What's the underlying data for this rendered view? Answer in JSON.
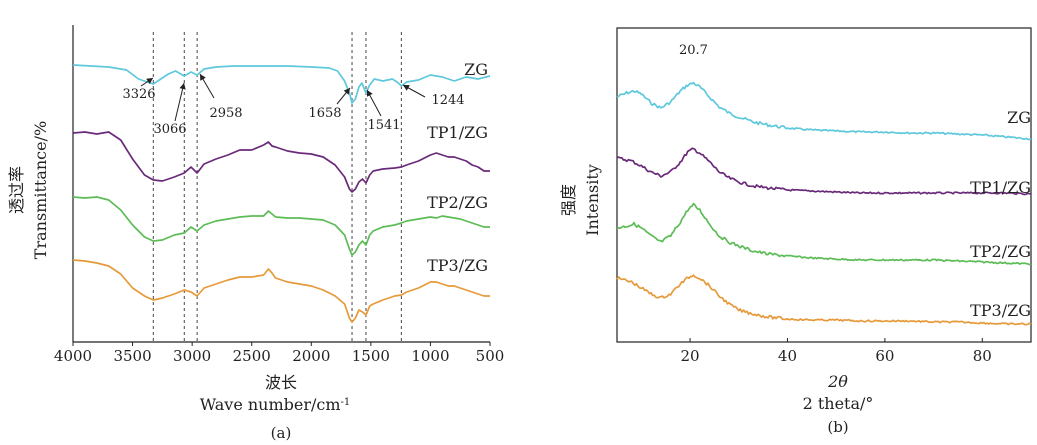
{
  "chart_data": [
    {
      "type": "line",
      "panel_label": "(a)",
      "xlabel_cn": "波长",
      "xlabel": "Wave number/cm",
      "xlabel_sup": "-1",
      "ylabel_cn": "透过率",
      "ylabel": "Transmittance/%",
      "xlim": [
        4000,
        500
      ],
      "x_ticks": [
        4000,
        3500,
        3000,
        2500,
        2000,
        1500,
        1000,
        500
      ],
      "dashed_lines_x": [
        3326,
        3066,
        2958,
        1658,
        1541,
        1244
      ],
      "annotations": [
        {
          "text": "3326",
          "x": 3326
        },
        {
          "text": "3066",
          "x": 3066
        },
        {
          "text": "2958",
          "x": 2958
        },
        {
          "text": "1658",
          "x": 1658
        },
        {
          "text": "1541",
          "x": 1541
        },
        {
          "text": "1244",
          "x": 1244
        }
      ],
      "series": [
        {
          "name": "ZG",
          "color": "#5ec8dc",
          "offset": 0,
          "x": [
            4000,
            3850,
            3700,
            3550,
            3450,
            3326,
            3200,
            3140,
            3066,
            3010,
            2958,
            2900,
            2800,
            2650,
            2500,
            2360,
            2300,
            2200,
            2000,
            1850,
            1780,
            1720,
            1680,
            1658,
            1630,
            1600,
            1575,
            1541,
            1510,
            1470,
            1400,
            1320,
            1280,
            1244,
            1200,
            1100,
            1000,
            900,
            800,
            700,
            600,
            500
          ],
          "y": [
            0,
            1,
            2,
            5,
            14,
            19,
            9,
            6,
            11,
            7,
            10,
            4,
            2,
            1,
            1,
            1,
            1,
            1,
            2,
            3,
            6,
            16,
            28,
            38,
            34,
            22,
            18,
            28,
            20,
            14,
            16,
            14,
            17,
            21,
            17,
            15,
            10,
            12,
            16,
            12,
            14,
            11
          ]
        },
        {
          "name": "TP1/ZG",
          "color": "#6a2a7a",
          "offset": 72,
          "x": [
            4000,
            3900,
            3800,
            3700,
            3600,
            3500,
            3400,
            3326,
            3250,
            3150,
            3066,
            3010,
            2958,
            2900,
            2800,
            2700,
            2600,
            2500,
            2400,
            2360,
            2330,
            2300,
            2200,
            2100,
            2000,
            1900,
            1800,
            1720,
            1680,
            1658,
            1630,
            1600,
            1570,
            1541,
            1510,
            1480,
            1400,
            1300,
            1244,
            1200,
            1100,
            1000,
            950,
            900,
            850,
            800,
            750,
            700,
            650,
            600,
            550,
            500
          ],
          "y": [
            -4,
            -5,
            -3,
            -5,
            3,
            22,
            38,
            43,
            44,
            40,
            36,
            30,
            36,
            27,
            22,
            18,
            13,
            13,
            8,
            5,
            9,
            10,
            14,
            16,
            17,
            20,
            28,
            40,
            52,
            55,
            52,
            45,
            42,
            46,
            38,
            34,
            32,
            31,
            30,
            28,
            24,
            18,
            16,
            18,
            20,
            20,
            22,
            24,
            28,
            30,
            34,
            34
          ]
        },
        {
          "name": "TP2/ZG",
          "color": "#5cbc56",
          "offset": 132,
          "x": [
            4000,
            3900,
            3800,
            3700,
            3600,
            3500,
            3400,
            3326,
            3250,
            3150,
            3066,
            3010,
            2958,
            2900,
            2800,
            2700,
            2600,
            2500,
            2400,
            2360,
            2330,
            2300,
            2200,
            2100,
            2000,
            1900,
            1800,
            1720,
            1680,
            1658,
            1630,
            1600,
            1570,
            1541,
            1510,
            1480,
            1400,
            1300,
            1244,
            1200,
            1100,
            1000,
            950,
            900,
            850,
            800,
            750,
            700,
            650,
            600,
            550,
            500
          ],
          "y": [
            0,
            1,
            0,
            3,
            13,
            28,
            40,
            44,
            43,
            38,
            36,
            30,
            34,
            28,
            24,
            22,
            20,
            19,
            19,
            14,
            17,
            20,
            21,
            21,
            22,
            23,
            28,
            38,
            52,
            58,
            55,
            48,
            44,
            48,
            38,
            34,
            30,
            28,
            26,
            24,
            22,
            20,
            21,
            19,
            20,
            21,
            22,
            24,
            26,
            28,
            30,
            30
          ]
        },
        {
          "name": "TP3/ZG",
          "color": "#e69a3a",
          "offset": 195,
          "x": [
            4000,
            3900,
            3800,
            3700,
            3600,
            3500,
            3400,
            3326,
            3250,
            3150,
            3066,
            3010,
            2958,
            2900,
            2800,
            2700,
            2600,
            2500,
            2400,
            2360,
            2330,
            2300,
            2200,
            2100,
            2000,
            1900,
            1800,
            1720,
            1680,
            1658,
            1630,
            1600,
            1570,
            1541,
            1510,
            1480,
            1400,
            1300,
            1244,
            1200,
            1100,
            1000,
            950,
            900,
            850,
            800,
            750,
            700,
            650,
            600,
            550,
            500
          ],
          "y": [
            0,
            1,
            3,
            6,
            14,
            28,
            36,
            40,
            38,
            34,
            30,
            32,
            36,
            28,
            24,
            20,
            17,
            17,
            15,
            9,
            13,
            18,
            22,
            24,
            26,
            30,
            36,
            44,
            58,
            62,
            58,
            50,
            52,
            55,
            46,
            44,
            40,
            36,
            35,
            32,
            28,
            22,
            22,
            24,
            26,
            26,
            28,
            30,
            32,
            34,
            36,
            36
          ]
        }
      ]
    },
    {
      "type": "line",
      "panel_label": "(b)",
      "xlabel_italic": "2θ",
      "xlabel": "2 theta/°",
      "ylabel_cn": "强度",
      "ylabel": "Intensity",
      "xlim": [
        5,
        90
      ],
      "x_ticks": [
        20,
        40,
        60,
        80
      ],
      "annotations": [
        {
          "text": "20.7",
          "x": 20.7
        }
      ],
      "series": [
        {
          "name": "ZG",
          "color": "#5ec8dc",
          "offset": 0,
          "x": [
            5,
            7,
            8.5,
            10,
            12,
            14,
            16,
            18,
            19.5,
            20.7,
            22,
            24,
            26,
            28,
            30,
            33,
            36,
            40,
            45,
            50,
            55,
            60,
            65,
            70,
            75,
            80,
            85,
            90
          ],
          "y": [
            22,
            18,
            16,
            19,
            28,
            33,
            27,
            16,
            10,
            8,
            12,
            22,
            32,
            38,
            42,
            47,
            50,
            53,
            55,
            56,
            57,
            57,
            58,
            58,
            59,
            60,
            62,
            64
          ]
        },
        {
          "name": "TP1/ZG",
          "color": "#6a2a7a",
          "offset": 83,
          "x": [
            5,
            8,
            10,
            12,
            14,
            16,
            18,
            19.5,
            20.7,
            22,
            24,
            26,
            28,
            30,
            33,
            36,
            40,
            45,
            50,
            55,
            60,
            65,
            70,
            75,
            80,
            85,
            90
          ],
          "y": [
            0,
            3,
            8,
            14,
            18,
            14,
            4,
            -6,
            -9,
            -5,
            4,
            14,
            20,
            24,
            28,
            30,
            32,
            33,
            34,
            35,
            35,
            35,
            35,
            35,
            35,
            35,
            36
          ]
        },
        {
          "name": "TP2/ZG",
          "color": "#5cbc56",
          "offset": 143,
          "x": [
            5,
            7,
            8.5,
            10,
            12,
            14,
            16,
            18,
            19.5,
            20.7,
            22,
            24,
            26,
            28,
            30,
            33,
            36,
            40,
            45,
            50,
            55,
            60,
            65,
            70,
            75,
            80,
            85,
            90
          ],
          "y": [
            10,
            8,
            6,
            10,
            18,
            24,
            18,
            4,
            -8,
            -13,
            -8,
            6,
            18,
            24,
            28,
            33,
            36,
            38,
            40,
            41,
            42,
            42,
            42,
            42,
            43,
            44,
            45,
            46
          ]
        },
        {
          "name": "TP3/ZG",
          "color": "#e69a3a",
          "offset": 203,
          "x": [
            5,
            8,
            10,
            12,
            14,
            16,
            18,
            19.5,
            20.7,
            22,
            24,
            26,
            28,
            30,
            33,
            36,
            40,
            45,
            50,
            55,
            60,
            65,
            70,
            75,
            80,
            85,
            90
          ],
          "y": [
            0,
            4,
            10,
            16,
            20,
            16,
            6,
            0,
            -3,
            0,
            8,
            18,
            26,
            32,
            36,
            39,
            41,
            42,
            42,
            43,
            43,
            43,
            44,
            44,
            45,
            46,
            46
          ]
        }
      ]
    }
  ]
}
